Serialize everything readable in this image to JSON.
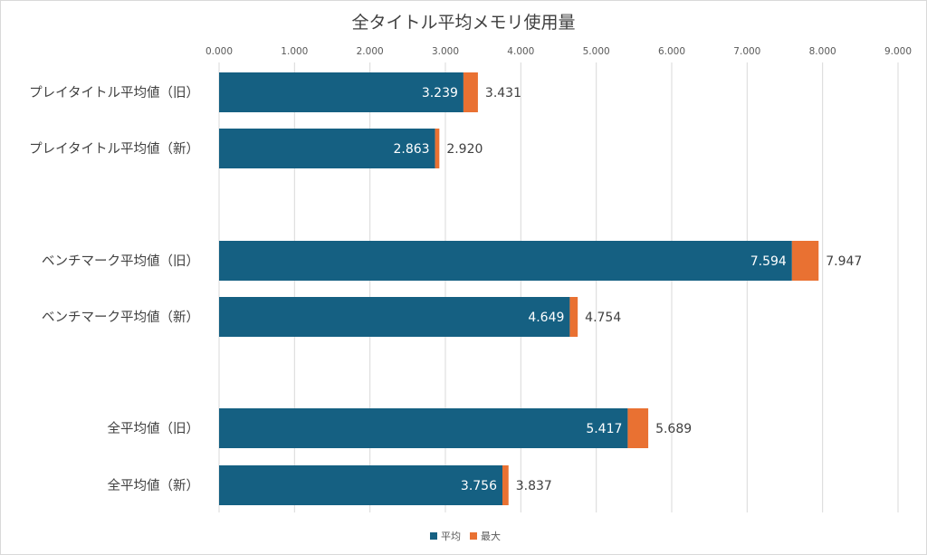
{
  "chart_data": {
    "type": "bar",
    "orientation": "horizontal",
    "stacked": true,
    "title": "全タイトル平均メモリ使用量",
    "xlim": [
      0,
      9
    ],
    "xticks": [
      "0.000",
      "1.000",
      "2.000",
      "3.000",
      "4.000",
      "5.000",
      "6.000",
      "7.000",
      "8.000",
      "9.000"
    ],
    "xaxis_position": "top",
    "grid": true,
    "legend_position": "bottom",
    "groups": [
      [
        "プレイタイトル平均値（旧）",
        "プレイタイトル平均値（新）"
      ],
      [
        "ベンチマーク平均値（旧）",
        "ベンチマーク平均値（新）"
      ],
      [
        "全平均値（旧）",
        "全平均値（新）"
      ]
    ],
    "categories": [
      "プレイタイトル平均値（旧）",
      "プレイタイトル平均値（新）",
      "ベンチマーク平均値（旧）",
      "ベンチマーク平均値（新）",
      "全平均値（旧）",
      "全平均値（新）"
    ],
    "series": [
      {
        "name": "平均",
        "color": "#156082",
        "values": [
          3.239,
          2.863,
          7.594,
          4.649,
          5.417,
          3.756
        ],
        "labels": [
          "3.239",
          "2.863",
          "7.594",
          "4.649",
          "5.417",
          "3.756"
        ]
      },
      {
        "name": "最大",
        "color": "#e97132",
        "totals": [
          3.431,
          2.92,
          7.947,
          4.754,
          5.689,
          3.837
        ],
        "labels": [
          "3.431",
          "2.920",
          "7.947",
          "4.754",
          "5.689",
          "3.837"
        ]
      }
    ]
  }
}
